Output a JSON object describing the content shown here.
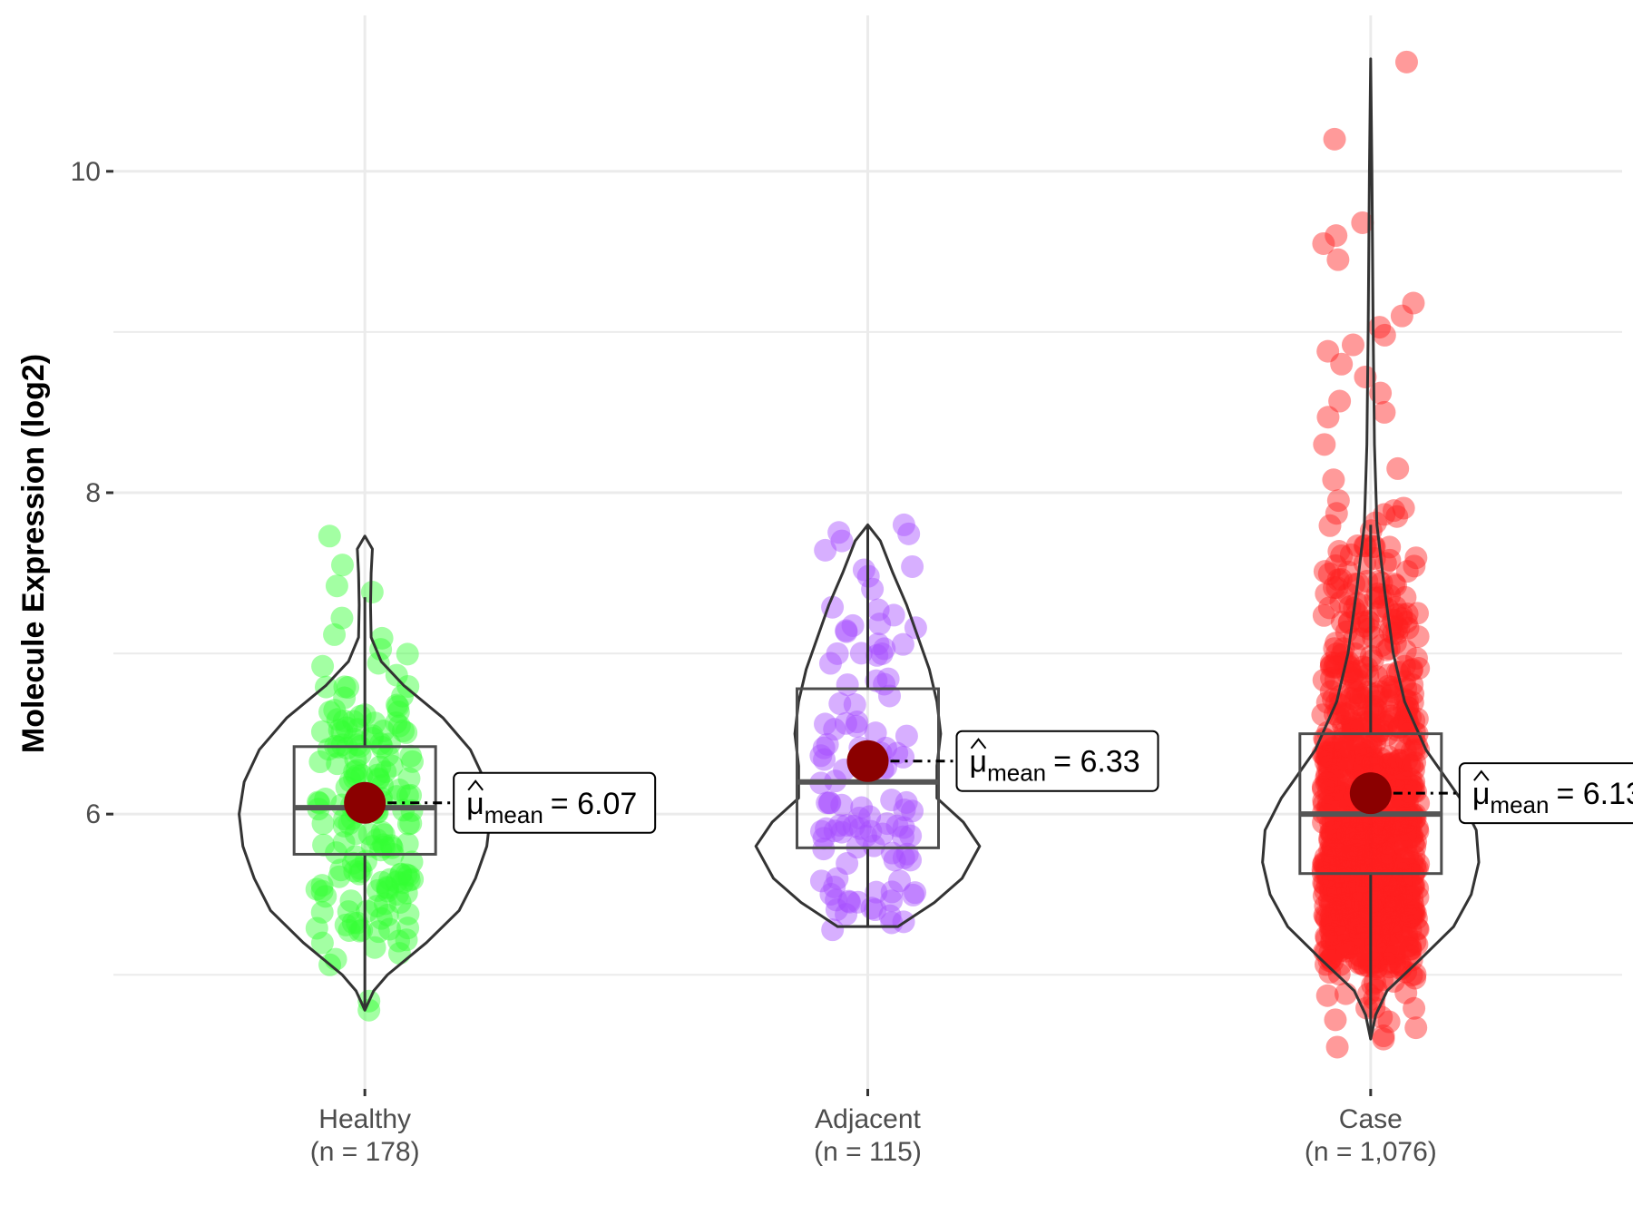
{
  "chart_data": {
    "type": "violin",
    "title": "",
    "xlabel": "",
    "ylabel": "Molecule Expression (log2)",
    "ylim": [
      4.29,
      10.97
    ],
    "yticks": [
      6,
      8,
      10
    ],
    "ytick_labels": [
      "6",
      "8",
      "10"
    ],
    "grid": true,
    "mean_symbol": "μ",
    "mean_subscript": "mean",
    "groups": [
      {
        "name": "Healthy",
        "n_label": "(n = 178)",
        "n": 178,
        "color": "#33ff33",
        "mean": 6.07,
        "mean_label": "= 6.07",
        "box": {
          "q1": 5.75,
          "median": 6.04,
          "q3": 6.42,
          "whisker_low": 4.8,
          "whisker_high": 7.35
        },
        "violin": [
          [
            4.78,
            0
          ],
          [
            4.9,
            0.07
          ],
          [
            5.0,
            0.18
          ],
          [
            5.2,
            0.49
          ],
          [
            5.4,
            0.75
          ],
          [
            5.6,
            0.88
          ],
          [
            5.8,
            0.97
          ],
          [
            6.0,
            1.0
          ],
          [
            6.2,
            0.96
          ],
          [
            6.4,
            0.84
          ],
          [
            6.6,
            0.62
          ],
          [
            6.8,
            0.31
          ],
          [
            6.95,
            0.13
          ],
          [
            7.1,
            0.05
          ],
          [
            7.3,
            0.045
          ],
          [
            7.5,
            0.05
          ],
          [
            7.65,
            0.06
          ],
          [
            7.73,
            0
          ]
        ],
        "outliers": [
          4.78,
          7.73,
          7.55,
          7.42,
          7.22,
          6.92
        ]
      },
      {
        "name": "Adjacent",
        "n_label": "(n = 115)",
        "n": 115,
        "color": "#a64dff",
        "mean": 6.33,
        "mean_label": "= 6.33",
        "box": {
          "q1": 5.79,
          "median": 6.2,
          "q3": 6.78,
          "whisker_low": 5.3,
          "whisker_high": 7.8
        },
        "violin": [
          [
            5.3,
            0.24
          ],
          [
            5.45,
            0.53
          ],
          [
            5.6,
            0.75
          ],
          [
            5.8,
            0.89
          ],
          [
            5.95,
            0.76
          ],
          [
            6.1,
            0.55
          ],
          [
            6.3,
            0.55
          ],
          [
            6.5,
            0.58
          ],
          [
            6.7,
            0.55
          ],
          [
            6.9,
            0.49
          ],
          [
            7.1,
            0.4
          ],
          [
            7.3,
            0.31
          ],
          [
            7.5,
            0.2
          ],
          [
            7.7,
            0.1
          ],
          [
            7.8,
            0
          ]
        ],
        "outliers": [
          7.8,
          7.7,
          7.48,
          7.4,
          5.28
        ]
      },
      {
        "name": "Case",
        "n_label": "(n = 1,076)",
        "n": 1076,
        "color": "#ff2020",
        "mean": 6.13,
        "mean_label": "= 6.13",
        "box": {
          "q1": 5.63,
          "median": 6.0,
          "q3": 6.5,
          "whisker_low": 4.6,
          "whisker_high": 7.8
        },
        "violin": [
          [
            4.6,
            0
          ],
          [
            4.75,
            0.04
          ],
          [
            4.9,
            0.13
          ],
          [
            5.1,
            0.4
          ],
          [
            5.3,
            0.66
          ],
          [
            5.5,
            0.8
          ],
          [
            5.7,
            0.86
          ],
          [
            5.9,
            0.84
          ],
          [
            6.1,
            0.71
          ],
          [
            6.4,
            0.44
          ],
          [
            6.7,
            0.27
          ],
          [
            7.0,
            0.18
          ],
          [
            7.4,
            0.11
          ],
          [
            7.8,
            0.05
          ],
          [
            8.3,
            0.03
          ],
          [
            9.0,
            0.02
          ],
          [
            10.0,
            0.01
          ],
          [
            10.7,
            0
          ]
        ],
        "outliers": [
          10.68,
          10.2,
          9.68,
          9.6,
          9.55,
          9.45,
          9.18,
          9.1,
          9.03,
          8.98,
          8.92,
          8.88,
          8.8,
          8.72,
          8.62,
          8.57,
          8.5,
          8.47,
          8.3,
          8.15,
          8.08,
          4.6,
          4.55,
          4.62,
          4.72
        ]
      }
    ]
  }
}
